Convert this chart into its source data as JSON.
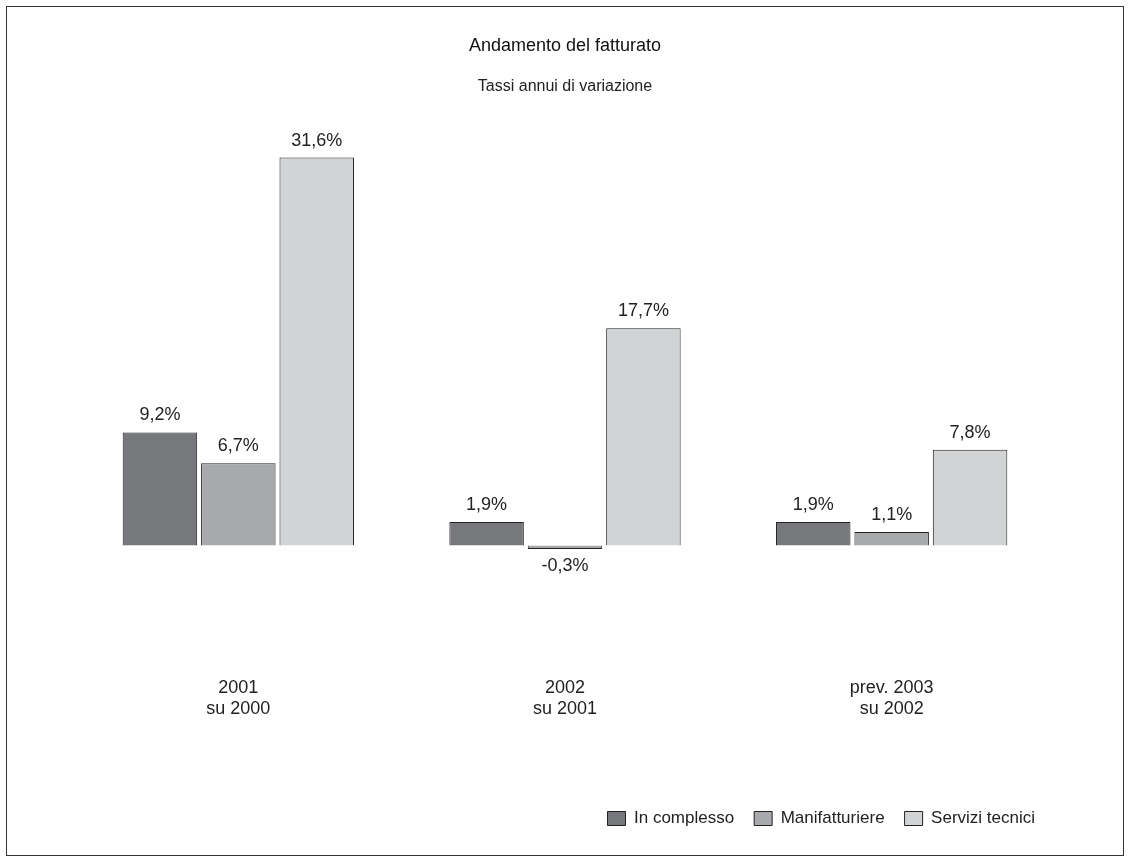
{
  "chart_data": {
    "type": "bar",
    "title": "Andamento del fatturato",
    "subtitle": "Tassi annui di variazione",
    "categories": [
      "2001\nsu 2000",
      "2002\nsu 2001",
      "prev. 2003\nsu 2002"
    ],
    "series": [
      {
        "name": "In complesso",
        "color": "#77787b",
        "values": [
          9.2,
          1.9,
          1.9
        ],
        "value_labels": [
          "9,2%",
          "1,9%",
          "1,9%"
        ]
      },
      {
        "name": "Manifatturiere",
        "color": "#a7a9ac",
        "values": [
          6.7,
          -0.3,
          1.1
        ],
        "value_labels": [
          "6,7%",
          "-0,3%",
          "1,1%"
        ]
      },
      {
        "name": "Servizi tecnici",
        "color": "#d1d3d4",
        "values": [
          31.6,
          17.7,
          7.8
        ],
        "value_labels": [
          "31,6%",
          "17,7%",
          "7,8%"
        ]
      }
    ],
    "grid": false,
    "legend": "bottom right"
  }
}
